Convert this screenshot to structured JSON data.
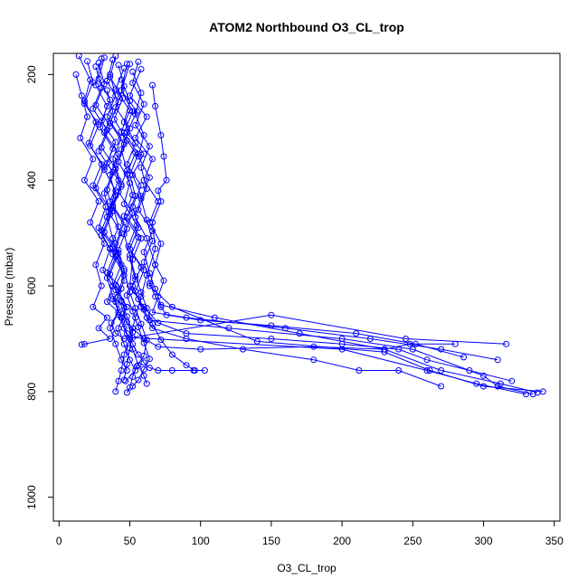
{
  "chart_data": {
    "type": "line",
    "title": "ATOM2 Northbound O3_CL_trop",
    "xlabel": "O3_CL_trop",
    "ylabel": "Pressure (mbar)",
    "xlim": [
      -4,
      354
    ],
    "ylim": [
      1045,
      160
    ],
    "y_reversed": true,
    "grid": false,
    "legend": "none",
    "x_ticks": [
      0,
      50,
      100,
      150,
      200,
      250,
      300,
      350
    ],
    "y_ticks": [
      200,
      400,
      600,
      800,
      1000
    ],
    "marker": "open-circle",
    "colors": {
      "series": "#0000ff",
      "axes": "#000000",
      "background": "#ffffff"
    },
    "series": [
      {
        "x": [
          14,
          22,
          18,
          26,
          21,
          30,
          24,
          33,
          28,
          36,
          31,
          38,
          34,
          42,
          37,
          40,
          46,
          150,
          245,
          316
        ],
        "y": [
          165,
          210,
          250,
          290,
          330,
          370,
          410,
          450,
          490,
          530,
          570,
          600,
          630,
          650,
          670,
          690,
          700,
          655,
          700,
          710
        ]
      },
      {
        "x": [
          30,
          26,
          34,
          29,
          38,
          32,
          40,
          35,
          44,
          38,
          46,
          42,
          48,
          44,
          52,
          60,
          70,
          100,
          180,
          230,
          248,
          280
        ],
        "y": [
          170,
          220,
          260,
          300,
          340,
          380,
          420,
          460,
          500,
          540,
          580,
          610,
          640,
          660,
          680,
          700,
          715,
          720,
          715,
          720,
          710,
          710
        ]
      },
      {
        "x": [
          40,
          36,
          45,
          39,
          48,
          42,
          50,
          46,
          55,
          49,
          58,
          52,
          56,
          60,
          64,
          120,
          200,
          250,
          300,
          310,
          335
        ],
        "y": [
          165,
          205,
          245,
          285,
          325,
          365,
          405,
          445,
          485,
          525,
          565,
          600,
          625,
          645,
          665,
          680,
          700,
          720,
          770,
          790,
          805
        ]
      },
      {
        "x": [
          50,
          44,
          55,
          48,
          60,
          52,
          58,
          54,
          62,
          68,
          64,
          80,
          140,
          230,
          262,
          300,
          342
        ],
        "y": [
          180,
          230,
          270,
          310,
          350,
          390,
          430,
          470,
          510,
          560,
          600,
          640,
          705,
          725,
          760,
          790,
          800
        ]
      },
      {
        "x": [
          20,
          24,
          18,
          28,
          22,
          32,
          26,
          36,
          30,
          40,
          34,
          44,
          38,
          48,
          42,
          46,
          52,
          56,
          60,
          62
        ],
        "y": [
          175,
          215,
          255,
          295,
          335,
          375,
          415,
          455,
          495,
          535,
          575,
          605,
          625,
          640,
          655,
          680,
          720,
          750,
          770,
          785
        ]
      },
      {
        "x": [
          58,
          50,
          62,
          54,
          66,
          60,
          70,
          64,
          72,
          68,
          74,
          70,
          66,
          90,
          160,
          220,
          270,
          310
        ],
        "y": [
          190,
          240,
          280,
          320,
          360,
          400,
          440,
          480,
          520,
          560,
          590,
          620,
          650,
          660,
          680,
          700,
          720,
          740
        ]
      },
      {
        "x": [
          36,
          40,
          34,
          44,
          38,
          42,
          36,
          46,
          40,
          44,
          38,
          48,
          42,
          46,
          50,
          54,
          47
        ],
        "y": [
          200,
          240,
          280,
          320,
          360,
          400,
          440,
          480,
          520,
          560,
          600,
          640,
          680,
          710,
          740,
          760,
          780
        ]
      },
      {
        "x": [
          12,
          16,
          20,
          15,
          24,
          18,
          28,
          22,
          32,
          26,
          30,
          24,
          34,
          28,
          36,
          18,
          16
        ],
        "y": [
          200,
          240,
          280,
          320,
          360,
          400,
          440,
          480,
          520,
          560,
          600,
          640,
          660,
          680,
          700,
          710,
          711
        ]
      },
      {
        "x": [
          44,
          50,
          46,
          54,
          48,
          58,
          52,
          56,
          50,
          60,
          54,
          58,
          62,
          66,
          90,
          130,
          180,
          212,
          240,
          270
        ],
        "y": [
          210,
          250,
          290,
          330,
          370,
          410,
          450,
          490,
          530,
          570,
          610,
          640,
          660,
          680,
          700,
          720,
          740,
          760,
          760,
          790
        ]
      },
      {
        "x": [
          66,
          68,
          72,
          74,
          76,
          70,
          72,
          66,
          68,
          62,
          58,
          54,
          50,
          46,
          44,
          42,
          40
        ],
        "y": [
          220,
          260,
          315,
          355,
          400,
          420,
          440,
          480,
          530,
          580,
          620,
          660,
          700,
          730,
          760,
          780,
          800
        ]
      },
      {
        "x": [
          34,
          38,
          32,
          42,
          36,
          40,
          34,
          38,
          42,
          46,
          40,
          44,
          48,
          52,
          56,
          60,
          64,
          70,
          80,
          95,
          103
        ],
        "y": [
          230,
          270,
          310,
          350,
          390,
          430,
          470,
          510,
          550,
          590,
          630,
          660,
          690,
          710,
          730,
          745,
          755,
          760,
          760,
          760,
          760
        ]
      },
      {
        "x": [
          48,
          44,
          52,
          46,
          56,
          50,
          54,
          48,
          58,
          52,
          50,
          60,
          70,
          90,
          150,
          200,
          240,
          260,
          290,
          320
        ],
        "y": [
          180,
          230,
          270,
          310,
          350,
          390,
          430,
          470,
          510,
          550,
          600,
          640,
          670,
          690,
          700,
          710,
          720,
          740,
          760,
          780
        ]
      },
      {
        "x": [
          26,
          30,
          24,
          34,
          28,
          38,
          32,
          36,
          30,
          40,
          34,
          38,
          42,
          36,
          40,
          44,
          48
        ],
        "y": [
          185,
          225,
          265,
          305,
          345,
          385,
          425,
          465,
          505,
          545,
          585,
          620,
          650,
          680,
          710,
          740,
          760
        ]
      },
      {
        "x": [
          52,
          58,
          54,
          60,
          56,
          64,
          58,
          62,
          66,
          60,
          64,
          68,
          72,
          76,
          100,
          150,
          210,
          252,
          286
        ],
        "y": [
          195,
          235,
          275,
          315,
          355,
          395,
          435,
          475,
          515,
          555,
          595,
          620,
          640,
          655,
          665,
          675,
          690,
          710,
          735
        ]
      },
      {
        "x": [
          38,
          34,
          42,
          36,
          46,
          40,
          44,
          38,
          48,
          42,
          46,
          50,
          54,
          58,
          62,
          60,
          55,
          52,
          50,
          48
        ],
        "y": [
          172,
          212,
          252,
          292,
          332,
          372,
          412,
          452,
          492,
          532,
          572,
          612,
          642,
          672,
          702,
          732,
          752,
          772,
          792,
          802
        ]
      },
      {
        "x": [
          28,
          32,
          26,
          36,
          30,
          40,
          34,
          38,
          32,
          42,
          36,
          40,
          44,
          48,
          52,
          200,
          260,
          295,
          330
        ],
        "y": [
          178,
          218,
          258,
          298,
          338,
          378,
          418,
          458,
          498,
          538,
          578,
          608,
          638,
          668,
          698,
          720,
          760,
          785,
          805
        ]
      },
      {
        "x": [
          42,
          46,
          40,
          50,
          44,
          48,
          42,
          52,
          46,
          50,
          54,
          58,
          62,
          66,
          72,
          80,
          90,
          96
        ],
        "y": [
          182,
          222,
          262,
          302,
          342,
          382,
          422,
          462,
          502,
          542,
          582,
          612,
          642,
          672,
          702,
          730,
          750,
          760
        ]
      },
      {
        "x": [
          32,
          28,
          36,
          30,
          40,
          34,
          44,
          38,
          42,
          36,
          46,
          40,
          44,
          48,
          52,
          50,
          48,
          46
        ],
        "y": [
          168,
          208,
          248,
          288,
          328,
          368,
          408,
          448,
          488,
          528,
          568,
          598,
          628,
          658,
          688,
          718,
          748,
          778
        ]
      },
      {
        "x": [
          56,
          52,
          60,
          54,
          64,
          58,
          62,
          56,
          66,
          60,
          64,
          68,
          72,
          110,
          170,
          230,
          270,
          312,
          338
        ],
        "y": [
          176,
          216,
          256,
          296,
          336,
          376,
          416,
          456,
          496,
          536,
          576,
          606,
          636,
          660,
          690,
          720,
          760,
          785,
          802
        ]
      },
      {
        "x": [
          46,
          40,
          50,
          44,
          54,
          48,
          52,
          46,
          56,
          50,
          54,
          48,
          52,
          56,
          60,
          64,
          60,
          56,
          52
        ],
        "y": [
          188,
          228,
          268,
          308,
          348,
          388,
          428,
          468,
          508,
          548,
          588,
          618,
          648,
          678,
          708,
          738,
          758,
          778,
          790
        ]
      }
    ]
  }
}
